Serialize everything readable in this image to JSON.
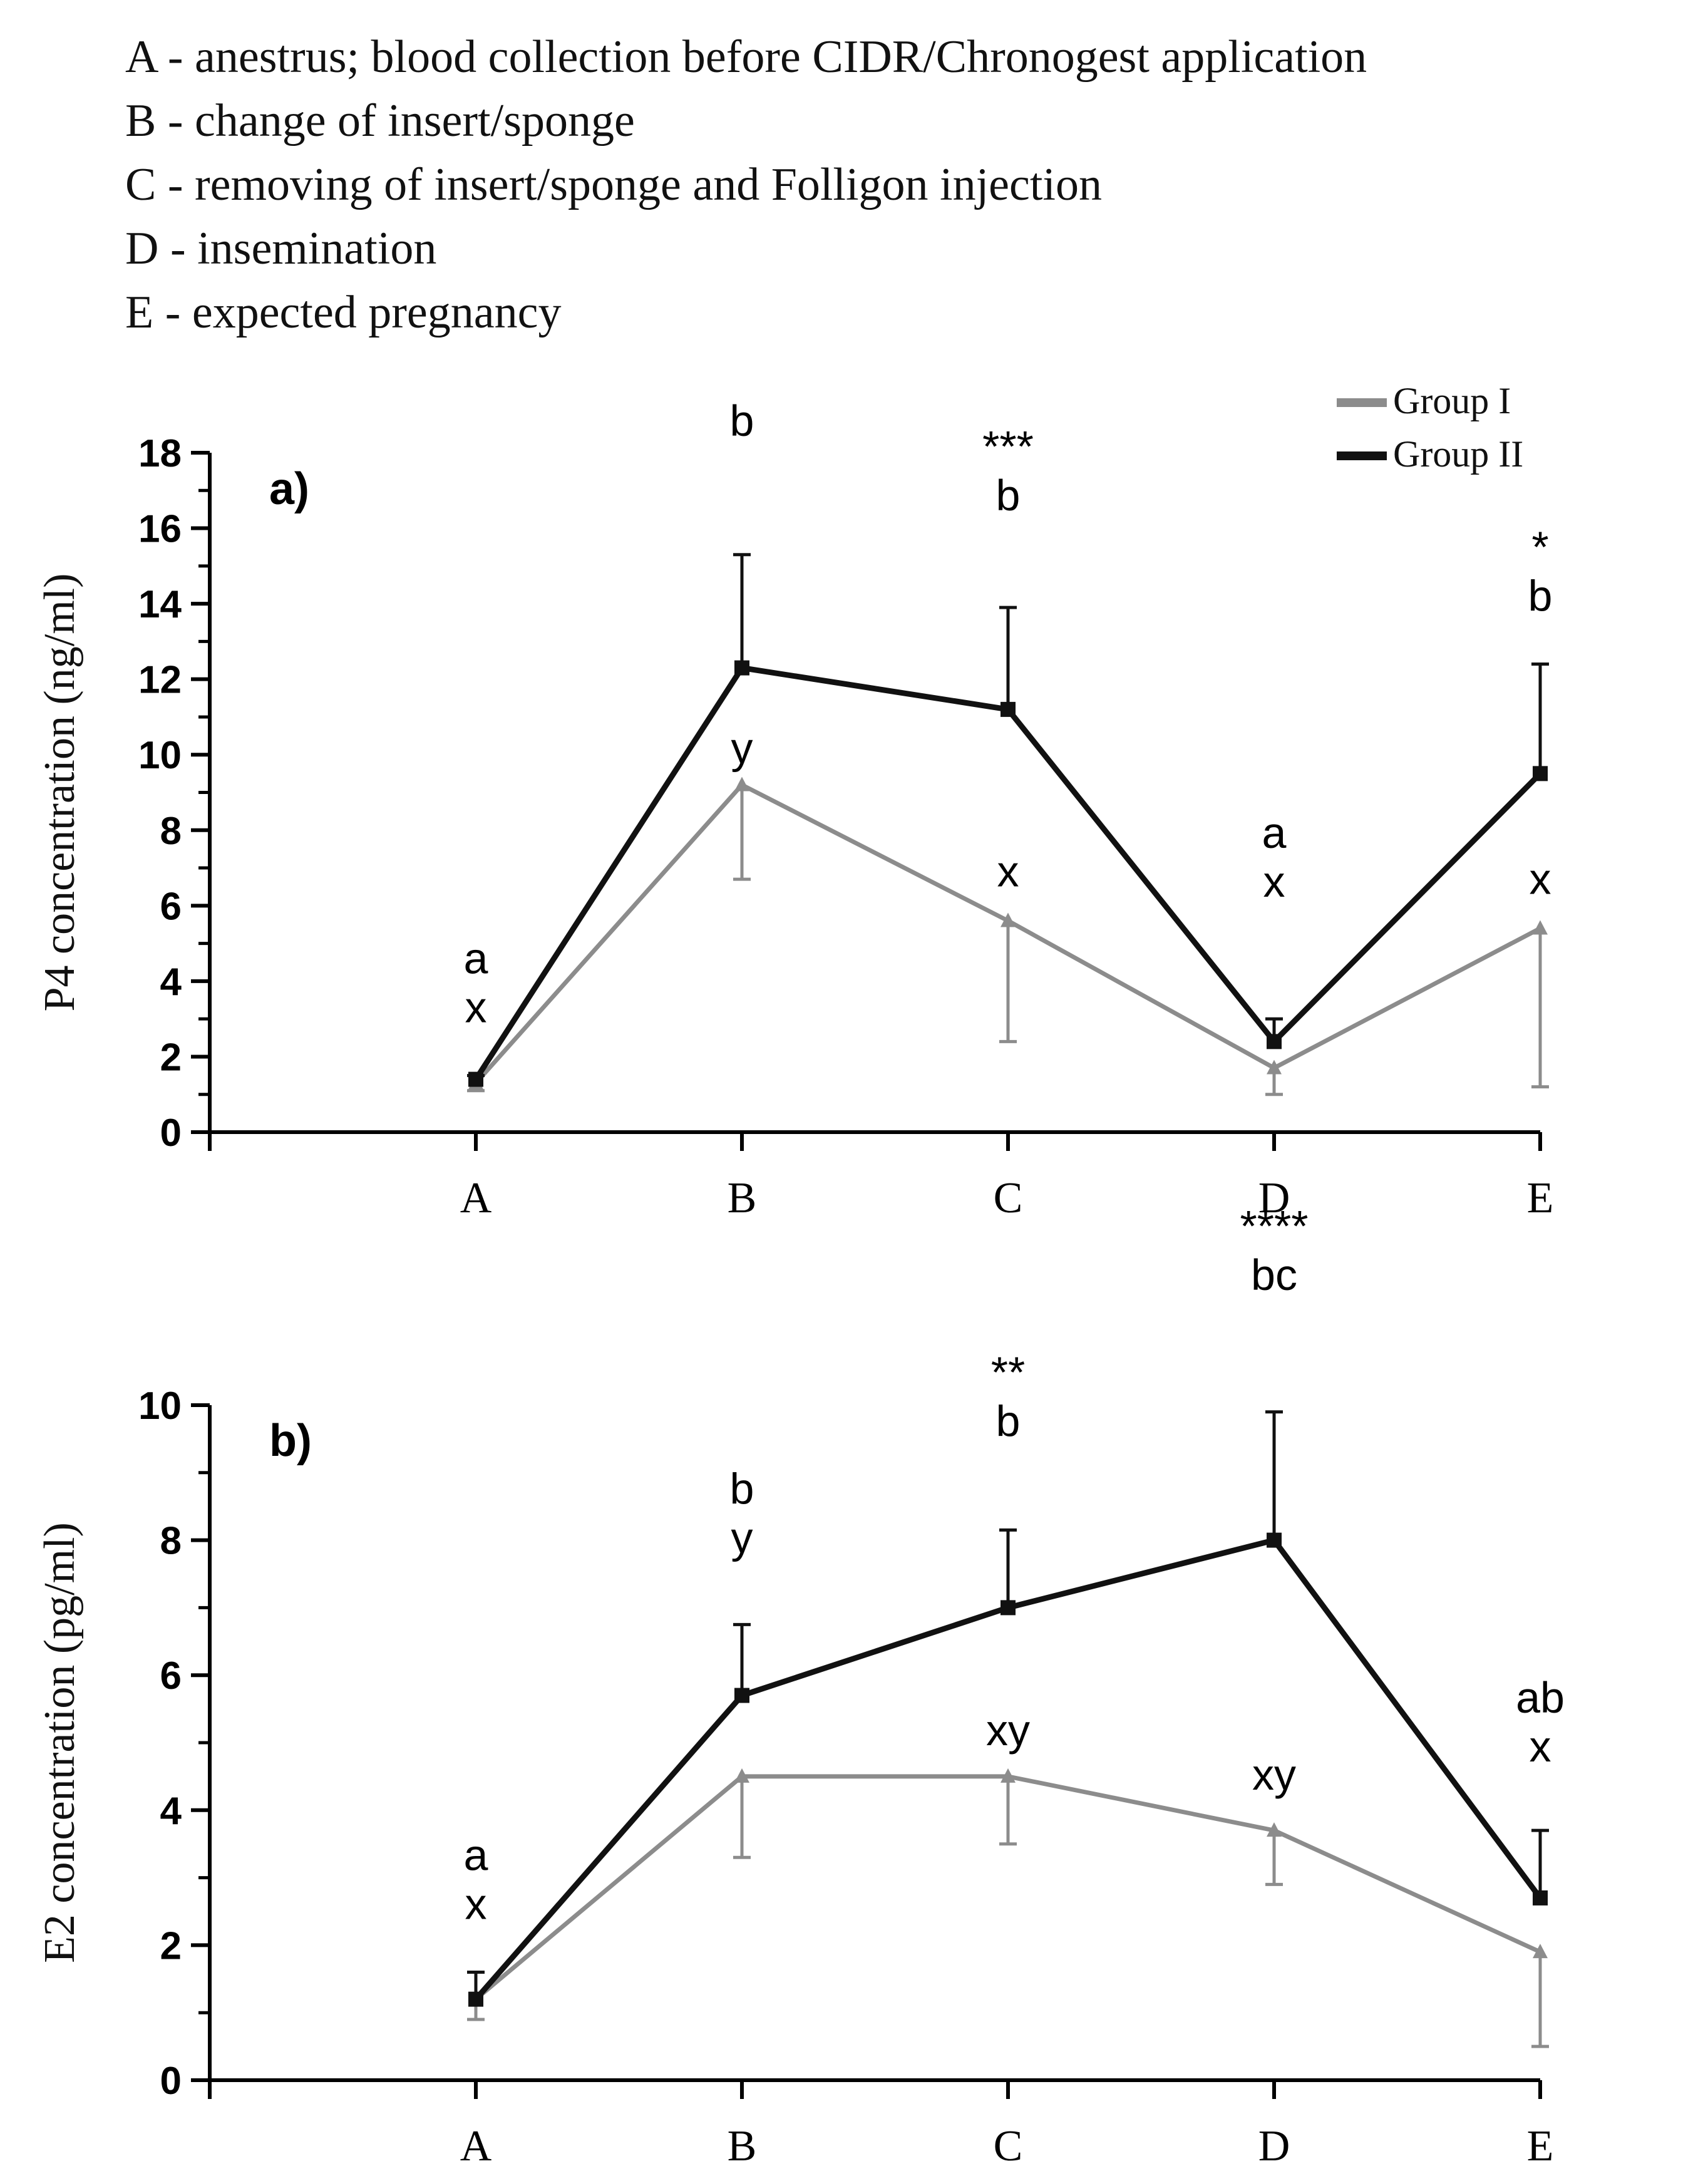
{
  "definitions": [
    "A - anestrus; blood collection before CIDR/Chronogest application",
    "B - change of insert/sponge",
    "C - removing of insert/sponge and Folligon injection",
    "D - insemination",
    "E - expected pregnancy"
  ],
  "legend": [
    {
      "name": "Group I",
      "color": "#8c8c8c"
    },
    {
      "name": "Group II",
      "color": "#111111"
    }
  ],
  "chart_data": [
    {
      "type": "line",
      "panel_label": "a)",
      "title": "",
      "xlabel": "",
      "ylabel": "P4 concentration (ng/ml)",
      "categories": [
        "A",
        "B",
        "C",
        "D",
        "E"
      ],
      "ylim": [
        0,
        18
      ],
      "yticks": [
        0,
        2,
        4,
        6,
        8,
        10,
        12,
        14,
        16,
        18
      ],
      "grid": false,
      "series": [
        {
          "name": "Group I",
          "color": "#8c8c8c",
          "marker": "triangle",
          "values": [
            1.3,
            9.2,
            5.6,
            1.7,
            5.4
          ],
          "error_lower": [
            0.2,
            2.5,
            3.2,
            0.7,
            4.2
          ],
          "error_upper": [
            0,
            0,
            0,
            0,
            0
          ]
        },
        {
          "name": "Group II",
          "color": "#111111",
          "marker": "square",
          "values": [
            1.4,
            12.3,
            11.2,
            2.4,
            9.5
          ],
          "error_lower": [
            0,
            0,
            0,
            0,
            0
          ],
          "error_upper": [
            0.1,
            3.0,
            2.7,
            0.6,
            2.9
          ]
        }
      ],
      "annotations": [
        {
          "category": "A",
          "lines": [
            "a",
            "x"
          ]
        },
        {
          "category": "B",
          "lines": [
            "b"
          ]
        },
        {
          "category": "B",
          "lines": [
            "y"
          ]
        },
        {
          "category": "C",
          "lines": [
            "***",
            "b"
          ]
        },
        {
          "category": "C",
          "lines": [
            "x"
          ]
        },
        {
          "category": "D",
          "lines": [
            "a",
            "x"
          ]
        },
        {
          "category": "E",
          "lines": [
            "*",
            "b"
          ]
        },
        {
          "category": "E",
          "lines": [
            "x"
          ]
        }
      ]
    },
    {
      "type": "line",
      "panel_label": "b)",
      "title": "",
      "xlabel": "",
      "ylabel": "E2 concentration (pg/ml)",
      "categories": [
        "A",
        "B",
        "C",
        "D",
        "E"
      ],
      "ylim": [
        0,
        10
      ],
      "yticks": [
        0,
        2,
        4,
        6,
        8,
        10
      ],
      "grid": false,
      "series": [
        {
          "name": "Group I",
          "color": "#8c8c8c",
          "marker": "triangle",
          "values": [
            1.2,
            4.5,
            4.5,
            3.7,
            1.9
          ],
          "error_lower": [
            0.3,
            1.2,
            1.0,
            0.8,
            1.4
          ],
          "error_upper": [
            0,
            0,
            0,
            0,
            0
          ]
        },
        {
          "name": "Group II",
          "color": "#111111",
          "marker": "square",
          "values": [
            1.2,
            5.7,
            7.0,
            8.0,
            2.7
          ],
          "error_lower": [
            0,
            0,
            0,
            0,
            0
          ],
          "error_upper": [
            0.4,
            1.05,
            1.15,
            1.9,
            1.0
          ]
        }
      ],
      "annotations": [
        {
          "category": "A",
          "lines": [
            "a",
            "x"
          ]
        },
        {
          "category": "B",
          "lines": [
            "b",
            "y"
          ]
        },
        {
          "category": "C",
          "lines": [
            "**",
            "b"
          ]
        },
        {
          "category": "C",
          "lines": [
            "xy"
          ]
        },
        {
          "category": "D",
          "lines": [
            "****",
            "bc"
          ]
        },
        {
          "category": "D",
          "lines": [
            "xy"
          ]
        },
        {
          "category": "E",
          "lines": [
            "ab",
            "x"
          ]
        }
      ]
    }
  ]
}
